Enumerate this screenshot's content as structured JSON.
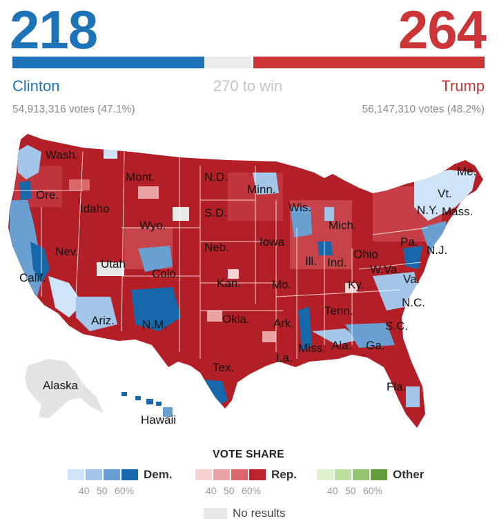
{
  "header": {
    "dem_electoral": "218",
    "rep_electoral": "264",
    "dem_name": "Clinton",
    "rep_name": "Trump",
    "threshold": "270 to win",
    "dem_votes": "54,913,316 votes (47.1%)",
    "rep_votes": "56,147,310 votes (48.2%)",
    "dem_color": "#1e73b8",
    "rep_color": "#cc3538"
  },
  "map": {
    "state_labels": [
      "Wash.",
      "Ore.",
      "Calif.",
      "Nev.",
      "Idaho",
      "Mont.",
      "Wyo.",
      "Utah",
      "Colo.",
      "Ariz.",
      "N.M.",
      "N.D.",
      "S.D.",
      "Neb.",
      "Kan.",
      "Okla.",
      "Tex.",
      "Minn.",
      "Iowa",
      "Mo.",
      "Ark.",
      "La.",
      "Wis.",
      "Ill.",
      "Mich.",
      "Ind.",
      "Ohio",
      "Ky.",
      "Tenn.",
      "Miss.",
      "Ala.",
      "Ga.",
      "Fla.",
      "S.C.",
      "N.C.",
      "Va.",
      "W.Va.",
      "Pa.",
      "N.Y.",
      "Vt.",
      "Mass.",
      "Me.",
      "N.J.",
      "Alaska",
      "Hawaii"
    ]
  },
  "legend": {
    "title": "VOTE SHARE",
    "dem_label": "Dem.",
    "rep_label": "Rep.",
    "other_label": "Other",
    "ticks": [
      "40",
      "50",
      "60%"
    ],
    "no_results": "No results",
    "dem_colors": [
      "#cfe4f7",
      "#a3c6e8",
      "#6a9fd2",
      "#1768ab"
    ],
    "rep_colors": [
      "#f8d1d2",
      "#eba4a6",
      "#d9676c",
      "#b9232b"
    ],
    "other_colors": [
      "#dff0cf",
      "#bddea1",
      "#94c271",
      "#5f9e3a"
    ],
    "no_results_color": "#e8e8e8"
  }
}
